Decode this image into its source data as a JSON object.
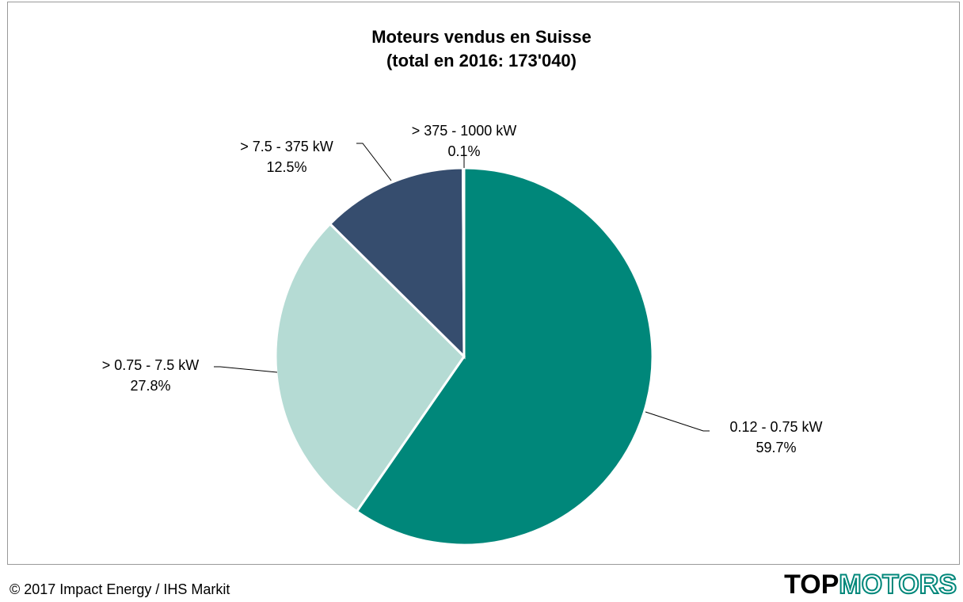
{
  "chart_data": {
    "type": "pie",
    "title": "Moteurs vendus en Suisse",
    "subtitle": "(total en 2016: 173'040)",
    "categories": [
      "0.12 - 0.75 kW",
      "> 0.75 - 7.5 kW",
      "> 7.5 - 375 kW",
      "> 375 - 1000 kW"
    ],
    "values": [
      59.7,
      27.8,
      12.5,
      0.1
    ],
    "value_labels": [
      "59.7%",
      "27.8%",
      "12.5%",
      "0.1%"
    ],
    "colors": [
      "#00877a",
      "#b5dbd4",
      "#364d6e",
      "#1f2f45"
    ],
    "source": "© 2017 Impact Energy / IHS Markit",
    "logo": [
      "TOP",
      "MOTORS"
    ]
  }
}
